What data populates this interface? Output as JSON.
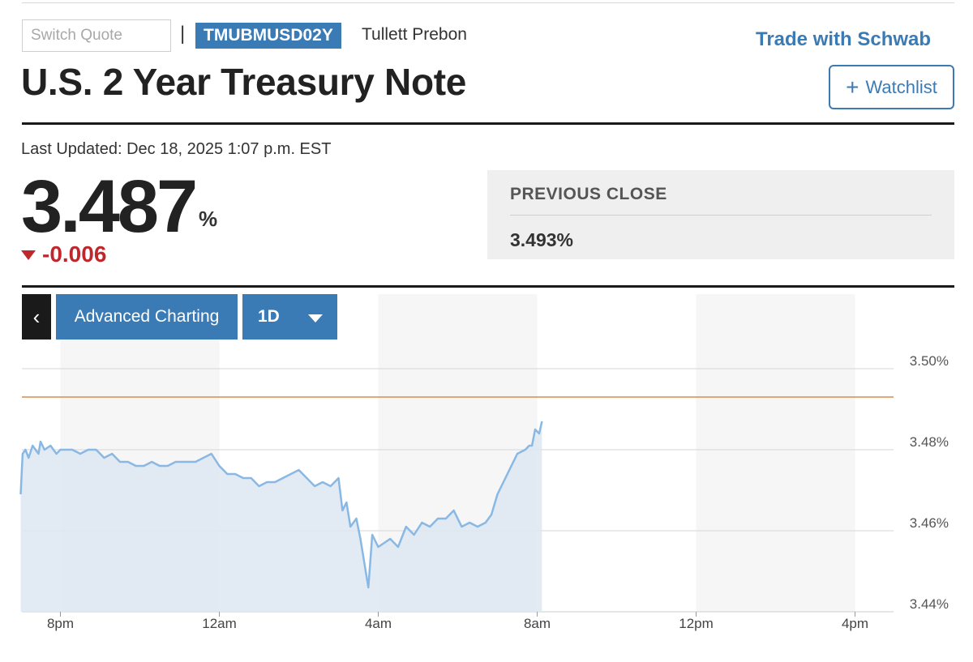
{
  "header": {
    "search_placeholder": "Switch Quote",
    "separator": "|",
    "ticker": "TMUBMUSD02Y",
    "source": "Tullett Prebon",
    "promo_link": "Trade with Schwab",
    "title": "U.S. 2 Year Treasury Note",
    "watchlist_plus": "+",
    "watchlist_label": "Watchlist"
  },
  "quote": {
    "last_updated": "Last Updated: Dec 18, 2025 1:07 p.m. EST",
    "price": "3.487",
    "unit": "%",
    "change": "-0.006",
    "previous_close_label": "PREVIOUS CLOSE",
    "previous_close_value": "3.493%"
  },
  "toolbar": {
    "back": "‹",
    "advanced_charting": "Advanced Charting",
    "range": "1D"
  },
  "colors": {
    "accent": "#3b7bb5",
    "negative": "#c0272d",
    "line": "#8ab8e4",
    "area": "#dde7f1",
    "previous_close_line": "#d98b4a"
  },
  "chart_data": {
    "type": "area",
    "x_ticks": [
      "8pm",
      "12am",
      "4am",
      "8am",
      "12pm",
      "4pm"
    ],
    "y_ticks": [
      "3.50%",
      "3.48%",
      "3.46%",
      "3.44%"
    ],
    "y_tick_values": [
      3.5,
      3.48,
      3.46,
      3.44
    ],
    "ylim": [
      3.44,
      3.5
    ],
    "x_hours_since_7pm": [
      0,
      6
    ],
    "previous_close": 3.493,
    "series": [
      {
        "x": [
          0,
          0.05,
          0.12,
          0.2,
          0.3,
          0.45,
          0.5,
          0.6,
          0.75,
          0.9,
          1.0,
          1.3,
          1.5,
          1.7,
          1.9,
          2.1,
          2.3,
          2.5,
          2.7,
          2.9,
          3.1,
          3.3,
          3.5,
          3.7,
          3.9,
          4.0,
          4.2,
          4.4,
          4.6,
          4.8,
          5.0,
          5.2,
          5.4,
          5.6,
          5.8,
          6.0,
          6.2,
          6.4,
          6.6,
          6.8,
          7.0,
          7.2,
          7.4,
          7.6,
          7.8,
          8.0,
          8.1,
          8.2,
          8.3,
          8.45,
          8.55,
          8.65,
          8.75,
          8.85,
          9.0,
          9.15,
          9.3,
          9.5,
          9.7,
          9.9,
          10.1,
          10.3,
          10.5,
          10.7,
          10.9,
          11.1,
          11.3,
          11.5,
          11.7,
          11.85,
          12.0,
          12.1,
          12.3,
          12.5,
          12.7,
          12.8,
          12.87,
          12.95,
          13.05,
          13.12
        ],
        "y": [
          3.469,
          3.479,
          3.48,
          3.478,
          3.481,
          3.479,
          3.482,
          3.48,
          3.481,
          3.479,
          3.48,
          3.48,
          3.479,
          3.48,
          3.48,
          3.478,
          3.479,
          3.477,
          3.477,
          3.476,
          3.476,
          3.477,
          3.476,
          3.476,
          3.477,
          3.477,
          3.477,
          3.477,
          3.478,
          3.479,
          3.476,
          3.474,
          3.474,
          3.473,
          3.473,
          3.471,
          3.472,
          3.472,
          3.473,
          3.474,
          3.475,
          3.473,
          3.471,
          3.472,
          3.471,
          3.473,
          3.465,
          3.467,
          3.461,
          3.463,
          3.458,
          3.452,
          3.446,
          3.459,
          3.456,
          3.457,
          3.458,
          3.456,
          3.461,
          3.459,
          3.462,
          3.461,
          3.463,
          3.463,
          3.465,
          3.461,
          3.462,
          3.461,
          3.462,
          3.464,
          3.469,
          3.471,
          3.475,
          3.479,
          3.48,
          3.481,
          3.481,
          3.485,
          3.484,
          3.487
        ]
      }
    ]
  }
}
